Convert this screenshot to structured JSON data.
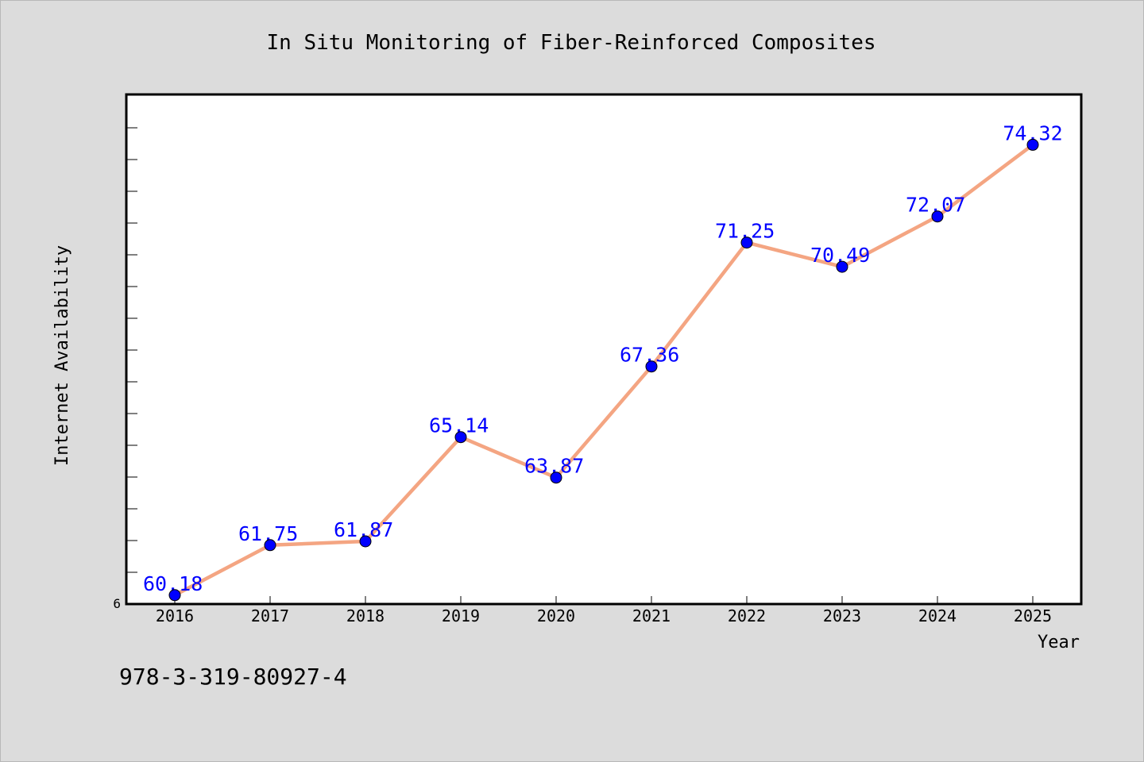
{
  "chart_data": {
    "type": "line",
    "title": "In Situ Monitoring of Fiber-Reinforced Composites",
    "xlabel": "Year",
    "ylabel": "Internet Availability",
    "categories": [
      "2016",
      "2017",
      "2018",
      "2019",
      "2020",
      "2021",
      "2022",
      "2023",
      "2024",
      "2025"
    ],
    "values": [
      60.18,
      61.75,
      61.87,
      65.14,
      63.87,
      67.36,
      71.25,
      70.49,
      72.07,
      74.32
    ],
    "data_labels": [
      "60.18",
      "61.75",
      "61.87",
      "65.14",
      "63.87",
      "67.36",
      "71.25",
      "70.49",
      "72.07",
      "74.32"
    ],
    "y_tick_labels": [
      "6"
    ],
    "ylim": [
      59.9,
      75.9
    ],
    "grid": false,
    "line_color": "#f4a582",
    "marker_color": "#0000ff",
    "label_color": "#0000ff"
  },
  "footer": {
    "isbn": "978-3-319-80927-4"
  }
}
